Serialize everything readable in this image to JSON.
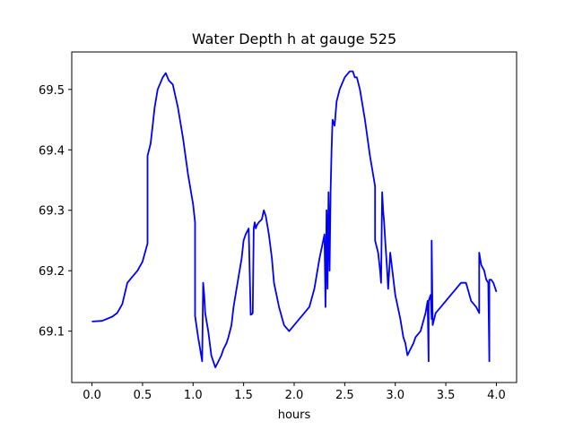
{
  "chart_data": {
    "type": "line",
    "title": "Water Depth h at gauge 525",
    "xlabel": "hours",
    "ylabel": "",
    "xlim": [
      -0.2,
      4.2
    ],
    "ylim": [
      69.015,
      69.562
    ],
    "grid": false,
    "xticks": [
      0.0,
      0.5,
      1.0,
      1.5,
      2.0,
      2.5,
      3.0,
      3.5,
      4.0
    ],
    "xtick_labels": [
      "0.0",
      "0.5",
      "1.0",
      "1.5",
      "2.0",
      "2.5",
      "3.0",
      "3.5",
      "4.0"
    ],
    "yticks": [
      69.1,
      69.2,
      69.3,
      69.4,
      69.5
    ],
    "ytick_labels": [
      "69.1",
      "69.2",
      "69.3",
      "69.4",
      "69.5"
    ],
    "series": [
      {
        "color": "#0000ff",
        "x": [
          0.0,
          0.1,
          0.2,
          0.25,
          0.3,
          0.35,
          0.4,
          0.45,
          0.5,
          0.55,
          0.55,
          0.58,
          0.6,
          0.62,
          0.65,
          0.7,
          0.73,
          0.76,
          0.8,
          0.85,
          0.9,
          0.95,
          1.0,
          1.02,
          1.02,
          1.05,
          1.08,
          1.09,
          1.1,
          1.11,
          1.12,
          1.13,
          1.15,
          1.18,
          1.2,
          1.22,
          1.25,
          1.28,
          1.3,
          1.33,
          1.35,
          1.38,
          1.4,
          1.45,
          1.48,
          1.5,
          1.52,
          1.55,
          1.57,
          1.58,
          1.59,
          1.6,
          1.61,
          1.62,
          1.63,
          1.65,
          1.68,
          1.7,
          1.72,
          1.75,
          1.78,
          1.8,
          1.85,
          1.9,
          1.95,
          2.0,
          2.05,
          2.1,
          2.15,
          2.2,
          2.25,
          2.3,
          2.31,
          2.32,
          2.33,
          2.34,
          2.35,
          2.36,
          2.37,
          2.38,
          2.4,
          2.42,
          2.45,
          2.5,
          2.55,
          2.58,
          2.6,
          2.62,
          2.65,
          2.7,
          2.75,
          2.8,
          2.8,
          2.83,
          2.85,
          2.86,
          2.87,
          2.88,
          2.89,
          2.9,
          2.92,
          2.93,
          2.95,
          3.0,
          3.05,
          3.08,
          3.1,
          3.12,
          3.15,
          3.18,
          3.2,
          3.25,
          3.3,
          3.32,
          3.33,
          3.33,
          3.35,
          3.36,
          3.36,
          3.37,
          3.4,
          3.45,
          3.5,
          3.55,
          3.6,
          3.65,
          3.7,
          3.75,
          3.8,
          3.83,
          3.83,
          3.85,
          3.88,
          3.9,
          3.92,
          3.93,
          3.93,
          3.95,
          3.97,
          4.0
        ],
        "y": [
          69.116,
          69.117,
          69.124,
          69.13,
          69.145,
          69.18,
          69.19,
          69.2,
          69.215,
          69.245,
          69.39,
          69.41,
          69.44,
          69.47,
          69.5,
          69.52,
          69.527,
          69.515,
          69.508,
          69.47,
          69.42,
          69.36,
          69.31,
          69.28,
          69.125,
          69.09,
          69.06,
          69.05,
          69.18,
          69.16,
          69.13,
          69.12,
          69.1,
          69.06,
          69.05,
          69.04,
          69.05,
          69.06,
          69.07,
          69.08,
          69.09,
          69.11,
          69.14,
          69.19,
          69.22,
          69.25,
          69.26,
          69.27,
          69.127,
          69.128,
          69.13,
          69.27,
          69.28,
          69.27,
          69.275,
          69.28,
          69.285,
          69.3,
          69.29,
          69.26,
          69.22,
          69.18,
          69.14,
          69.11,
          69.1,
          69.11,
          69.12,
          69.13,
          69.14,
          69.17,
          69.22,
          69.26,
          69.14,
          69.3,
          69.17,
          69.33,
          69.2,
          69.33,
          69.4,
          69.45,
          69.44,
          69.48,
          69.5,
          69.52,
          69.53,
          69.53,
          69.52,
          69.52,
          69.5,
          69.45,
          69.39,
          69.34,
          69.25,
          69.23,
          69.2,
          69.18,
          69.33,
          69.3,
          69.28,
          69.25,
          69.2,
          69.17,
          69.23,
          69.16,
          69.12,
          69.09,
          69.08,
          69.06,
          69.07,
          69.08,
          69.09,
          69.1,
          69.13,
          69.15,
          69.05,
          69.15,
          69.16,
          69.12,
          69.25,
          69.11,
          69.13,
          69.14,
          69.15,
          69.16,
          69.17,
          69.18,
          69.18,
          69.15,
          69.14,
          69.13,
          69.23,
          69.21,
          69.2,
          69.185,
          69.18,
          69.05,
          69.185,
          69.185,
          69.18,
          69.165
        ]
      }
    ]
  }
}
